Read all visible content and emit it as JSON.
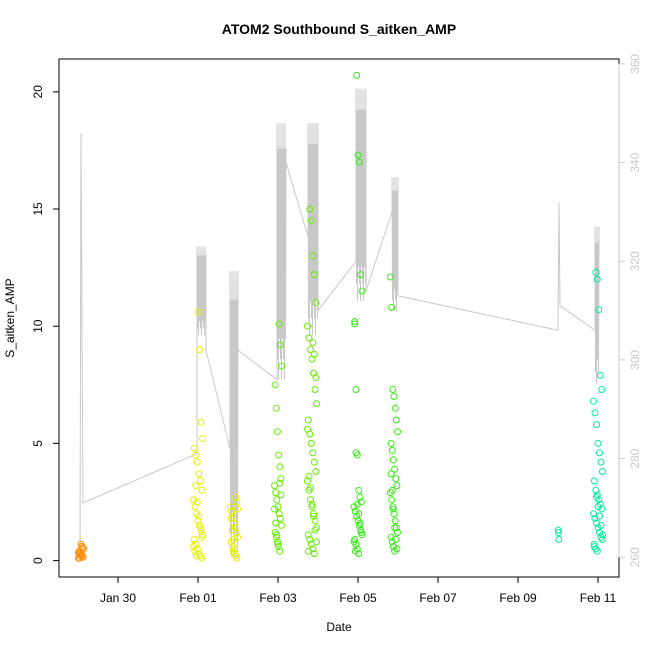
{
  "chart_data": {
    "type": "scatter",
    "title": "ATOM2 Southbound S_aitken_AMP",
    "xlabel": "Date",
    "ylabel": "S_aitken_AMP",
    "ylim": [
      -0.7,
      21.4
    ],
    "x_ticks": [
      "Jan 30",
      "Feb 01",
      "Feb 03",
      "Feb 05",
      "Feb 07",
      "Feb 09",
      "Feb 11"
    ],
    "y_ticks": [
      0,
      5,
      10,
      15,
      20
    ],
    "y2_ticks": [
      260,
      280,
      300,
      320,
      340,
      360
    ],
    "y2_lim": [
      256,
      361
    ],
    "grid": false,
    "colors": {
      "line": "#c8c8c8",
      "axis": "#000000",
      "right_axis": "#c8c8c8"
    },
    "series": [
      {
        "color": "#ff8c00",
        "points": [
          {
            "date": "Jan 29",
            "values": [
              0.1,
              0.15,
              0.2,
              0.25,
              0.3,
              0.35,
              0.4,
              0.5,
              0.55,
              0.6,
              0.7,
              0.2,
              0.1,
              0.3
            ]
          }
        ]
      },
      {
        "color": "#e6f000",
        "points": [
          {
            "date": "Feb 01",
            "values": [
              0.1,
              0.2,
              0.3,
              0.5,
              0.7,
              0.9,
              1.1,
              1.3,
              1.5,
              1.7,
              2.0,
              2.3,
              2.6,
              3.0,
              3.4,
              3.7,
              4.2,
              4.5,
              4.8,
              5.2,
              5.9,
              9.0,
              10.6,
              0.2,
              0.4,
              0.6,
              1.0,
              1.4,
              1.9,
              2.5,
              3.2
            ]
          },
          {
            "date": "Feb 02",
            "values": [
              0.1,
              0.2,
              0.3,
              0.4,
              0.6,
              0.8,
              1.0,
              1.2,
              1.4,
              1.6,
              1.9,
              2.1,
              2.3,
              2.5,
              2.7,
              0.5,
              0.9,
              1.3,
              1.8,
              2.2
            ]
          }
        ]
      },
      {
        "color": "#66ee00",
        "points": [
          {
            "date": "Feb 03",
            "values": [
              0.4,
              0.6,
              0.8,
              1.0,
              1.2,
              1.5,
              1.8,
              2.0,
              2.3,
              2.6,
              2.9,
              3.2,
              3.5,
              4.0,
              4.5,
              5.5,
              6.5,
              7.5,
              8.3,
              9.2,
              10.1,
              0.7,
              1.1,
              1.6,
              2.2,
              2.8,
              3.3
            ]
          },
          {
            "date": "Feb 04",
            "values": [
              0.3,
              0.5,
              0.7,
              0.9,
              1.1,
              1.4,
              1.7,
              2.0,
              2.3,
              2.6,
              3.0,
              3.4,
              3.8,
              4.2,
              4.6,
              5.0,
              5.4,
              6.0,
              6.7,
              7.3,
              8.0,
              8.6,
              9.0,
              9.5,
              10.0,
              11.0,
              12.2,
              13.0,
              14.5,
              15.0,
              0.4,
              0.8,
              1.3,
              1.9,
              2.4,
              3.1,
              3.6,
              5.6,
              7.8,
              8.8,
              9.3
            ]
          }
        ]
      },
      {
        "color": "#33ee11",
        "points": [
          {
            "date": "Feb 05",
            "values": [
              0.3,
              0.5,
              0.7,
              0.9,
              1.1,
              1.3,
              1.5,
              1.7,
              1.9,
              2.1,
              2.3,
              2.5,
              2.7,
              3.0,
              4.5,
              7.3,
              10.1,
              11.5,
              12.2,
              17.0,
              17.3,
              20.7,
              0.4,
              0.8,
              1.2,
              1.6,
              2.0,
              2.4,
              4.6,
              10.2
            ]
          },
          {
            "date": "Feb 06",
            "values": [
              0.4,
              0.6,
              0.8,
              1.0,
              1.2,
              1.4,
              1.7,
              2.0,
              2.3,
              2.6,
              2.9,
              3.2,
              3.5,
              3.9,
              4.3,
              4.7,
              5.0,
              5.5,
              6.0,
              6.5,
              7.0,
              7.3,
              10.8,
              12.1,
              0.5,
              0.9,
              1.4,
              2.2,
              3.0,
              3.7
            ]
          }
        ]
      },
      {
        "color": "#00ee99",
        "points": [
          {
            "date": "Feb 10",
            "values": [
              0.9,
              1.2,
              1.3
            ]
          },
          {
            "date": "Feb 11",
            "values": [
              0.4,
              0.5,
              0.7,
              0.9,
              1.0,
              1.2,
              1.4,
              1.6,
              1.8,
              2.0,
              2.2,
              2.4,
              2.6,
              2.8,
              3.0,
              3.4,
              3.8,
              4.2,
              4.6,
              5.0,
              5.8,
              6.3,
              6.8,
              7.3,
              7.9,
              10.7,
              12.0,
              12.3,
              0.6,
              1.1,
              1.5,
              1.9,
              2.3,
              2.7
            ]
          }
        ]
      }
    ]
  }
}
